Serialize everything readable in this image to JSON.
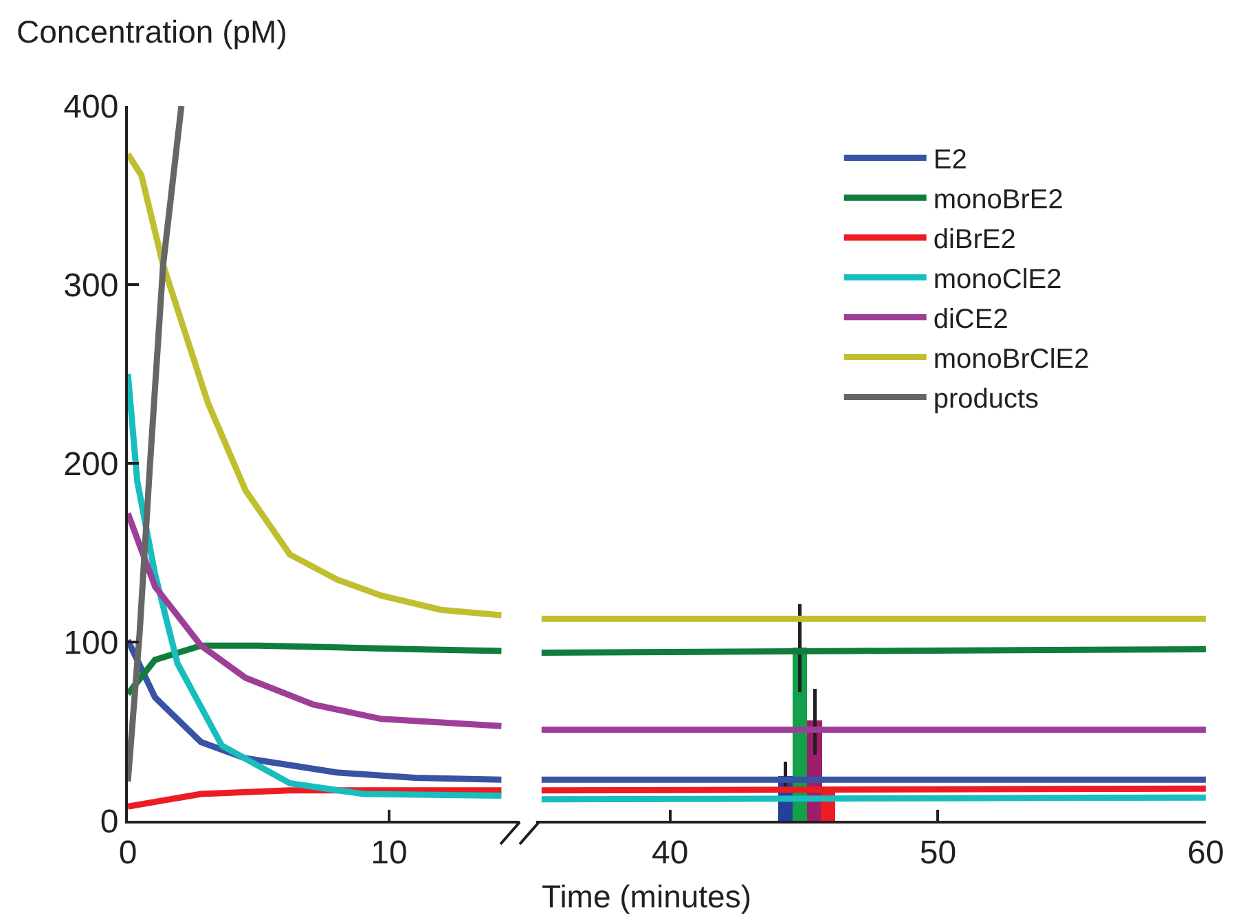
{
  "chart_data": [
    {
      "type": "line",
      "ylabel": "Concentration (pM)",
      "xlim": [
        0,
        15
      ],
      "xticks": [
        0,
        10
      ],
      "ylim": [
        0,
        400
      ],
      "yticks": [
        0,
        100,
        200,
        300,
        400
      ],
      "legend": "right",
      "series": [
        {
          "name": "E2",
          "color": "#3853a4",
          "x": [
            0,
            1.04,
            2.8,
            4.5,
            8,
            11,
            14.3
          ],
          "values": [
            101,
            69,
            44,
            35,
            27,
            24,
            23
          ]
        },
        {
          "name": "monoBrE2",
          "color": "#0f7d3c",
          "x": [
            0,
            1.04,
            2.8,
            5,
            8,
            11,
            14.3
          ],
          "values": [
            71,
            90,
            98,
            98,
            97,
            96,
            95
          ]
        },
        {
          "name": "diBrE2",
          "color": "#ed1c24",
          "x": [
            0,
            2.8,
            6.2,
            10,
            14.3
          ],
          "values": [
            8,
            15,
            17,
            17,
            17
          ]
        },
        {
          "name": "monoClE2",
          "color": "#18bdbd",
          "x": [
            0,
            0.36,
            1.04,
            1.9,
            3.6,
            6.2,
            9,
            14.3
          ],
          "values": [
            250,
            190,
            138,
            88,
            42,
            21,
            15,
            14
          ]
        },
        {
          "name": "diCE2",
          "color": "#9e3f97",
          "x": [
            0,
            1.04,
            2.8,
            4.5,
            7.1,
            9.7,
            14.3
          ],
          "values": [
            172,
            131,
            98,
            80,
            65,
            57,
            53
          ]
        },
        {
          "name": "monoBrClE2",
          "color": "#bfbf2f",
          "x": [
            0,
            0.52,
            1.35,
            3.06,
            4.5,
            6.2,
            8,
            9.7,
            12,
            14.3
          ],
          "values": [
            373,
            361,
            311,
            234,
            185,
            149,
            135,
            126,
            118,
            115
          ]
        },
        {
          "name": "products",
          "color": "#666666",
          "x": [
            0,
            0.45,
            0.85,
            1.35,
            2.05
          ],
          "values": [
            22,
            105,
            200,
            311,
            400
          ]
        }
      ]
    },
    {
      "type": "line",
      "xlabel": "Time (minutes)",
      "xlim": [
        35,
        60
      ],
      "xticks": [
        40,
        50,
        60
      ],
      "ylim": [
        0,
        400
      ],
      "tick_labels": "x",
      "series": [
        {
          "color": "#3853a4",
          "x": [
            35.2,
            60
          ],
          "values": [
            23,
            23
          ]
        },
        {
          "color": "#0f7d3c",
          "x": [
            35.2,
            47,
            60
          ],
          "values": [
            94,
            95,
            96
          ]
        },
        {
          "color": "#ed1c24",
          "x": [
            35.2,
            60
          ],
          "values": [
            17,
            18
          ]
        },
        {
          "color": "#18bdbd",
          "x": [
            35.2,
            60
          ],
          "values": [
            12,
            13
          ]
        },
        {
          "color": "#9e3f97",
          "x": [
            35.2,
            60
          ],
          "values": [
            51,
            51
          ]
        },
        {
          "color": "#bfbf2f",
          "x": [
            35.2,
            60
          ],
          "values": [
            113,
            113
          ]
        },
        {
          "type": "bar",
          "x": [
            44.3,
            44.85,
            45.4,
            45.9
          ],
          "values": [
            25,
            97,
            56,
            18
          ],
          "colors": [
            "#23409a",
            "#12a04a",
            "#9b1f6a",
            "#ee1c25"
          ],
          "errors": [
            [
              16,
              33
            ],
            [
              72,
              121
            ],
            [
              37,
              74
            ],
            null
          ]
        }
      ]
    }
  ]
}
